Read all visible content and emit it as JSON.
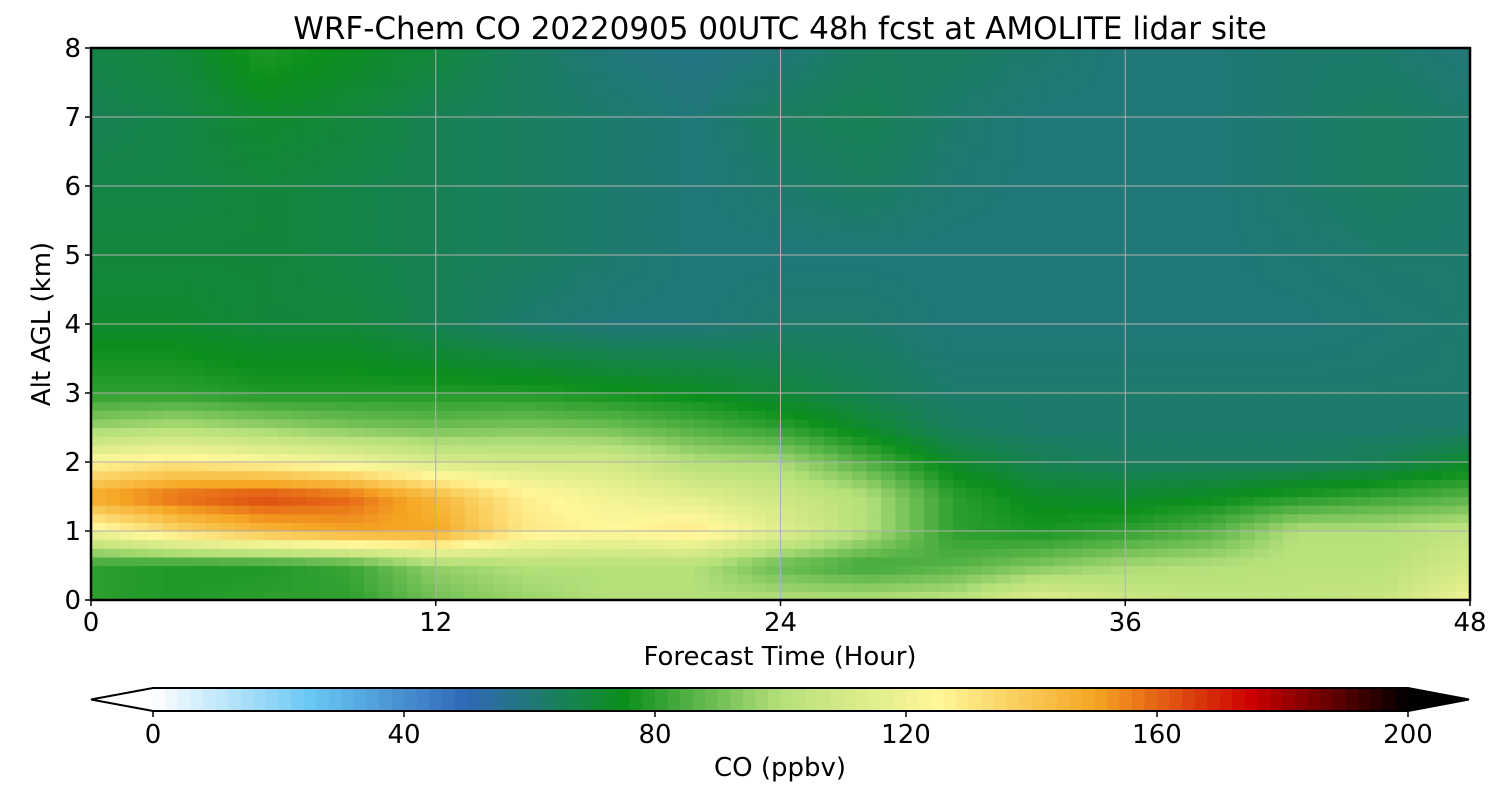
{
  "chart_data": {
    "type": "heatmap",
    "title": "WRF-Chem CO  20220905 00UTC 48h fcst at AMOLITE lidar site",
    "xlabel": "Forecast Time (Hour)",
    "ylabel": "Alt AGL (km)",
    "xlim": [
      0,
      48
    ],
    "ylim": [
      0,
      8
    ],
    "xticks": [
      "0",
      "12",
      "24",
      "36",
      "48"
    ],
    "yticks": [
      "0",
      "1",
      "2",
      "3",
      "4",
      "5",
      "6",
      "7",
      "8"
    ],
    "grid": true,
    "colorbar": {
      "label": "CO  (ppbv)",
      "min": 0,
      "max": 200,
      "ticks": [
        "0",
        "40",
        "80",
        "120",
        "160",
        "200"
      ],
      "extend": "both",
      "orientation": "horizontal",
      "colormap": [
        "#ffffff",
        "#6ac8f5",
        "#2f68b6",
        "#0b8f1c",
        "#b5e07a",
        "#fff79a",
        "#f5a623",
        "#cc0000",
        "#000000"
      ]
    },
    "time_hours": [
      0,
      3,
      6,
      9,
      12,
      15,
      18,
      21,
      24,
      27,
      30,
      33,
      36,
      39,
      42,
      45,
      48
    ],
    "altitude_km": [
      0,
      0.5,
      1,
      1.5,
      2,
      2.5,
      3,
      4,
      5,
      6,
      7,
      8
    ],
    "co_ppbv": [
      [
        80,
        78,
        80,
        80,
        90,
        96,
        100,
        100,
        100,
        100,
        102,
        115,
        108,
        104,
        104,
        106,
        120
      ],
      [
        80,
        78,
        78,
        82,
        95,
        100,
        100,
        100,
        88,
        82,
        86,
        92,
        98,
        100,
        102,
        102,
        110
      ],
      [
        120,
        135,
        145,
        150,
        150,
        130,
        125,
        130,
        115,
        100,
        80,
        77,
        80,
        86,
        100,
        100,
        104
      ],
      [
        150,
        160,
        165,
        160,
        145,
        128,
        120,
        115,
        108,
        100,
        80,
        73,
        72,
        74,
        78,
        82,
        86
      ],
      [
        125,
        130,
        125,
        120,
        112,
        110,
        110,
        100,
        98,
        85,
        72,
        66,
        64,
        64,
        64,
        66,
        72
      ],
      [
        96,
        100,
        96,
        92,
        90,
        92,
        90,
        85,
        80,
        72,
        64,
        62,
        62,
        62,
        62,
        62,
        62
      ],
      [
        80,
        80,
        78,
        78,
        78,
        78,
        76,
        74,
        70,
        66,
        62,
        62,
        62,
        62,
        62,
        62,
        62
      ],
      [
        72,
        72,
        70,
        70,
        66,
        62,
        60,
        60,
        62,
        62,
        60,
        60,
        60,
        60,
        60,
        61,
        62
      ],
      [
        70,
        70,
        70,
        68,
        66,
        64,
        62,
        60,
        60,
        60,
        60,
        60,
        60,
        60,
        61,
        62,
        62
      ],
      [
        68,
        68,
        70,
        68,
        66,
        64,
        62,
        60,
        62,
        64,
        61,
        60,
        60,
        60,
        62,
        64,
        62
      ],
      [
        66,
        68,
        72,
        70,
        66,
        64,
        62,
        60,
        64,
        66,
        62,
        60,
        60,
        60,
        62,
        64,
        62
      ],
      [
        68,
        70,
        78,
        74,
        70,
        64,
        60,
        58,
        60,
        64,
        64,
        62,
        60,
        60,
        62,
        62,
        60
      ]
    ]
  }
}
